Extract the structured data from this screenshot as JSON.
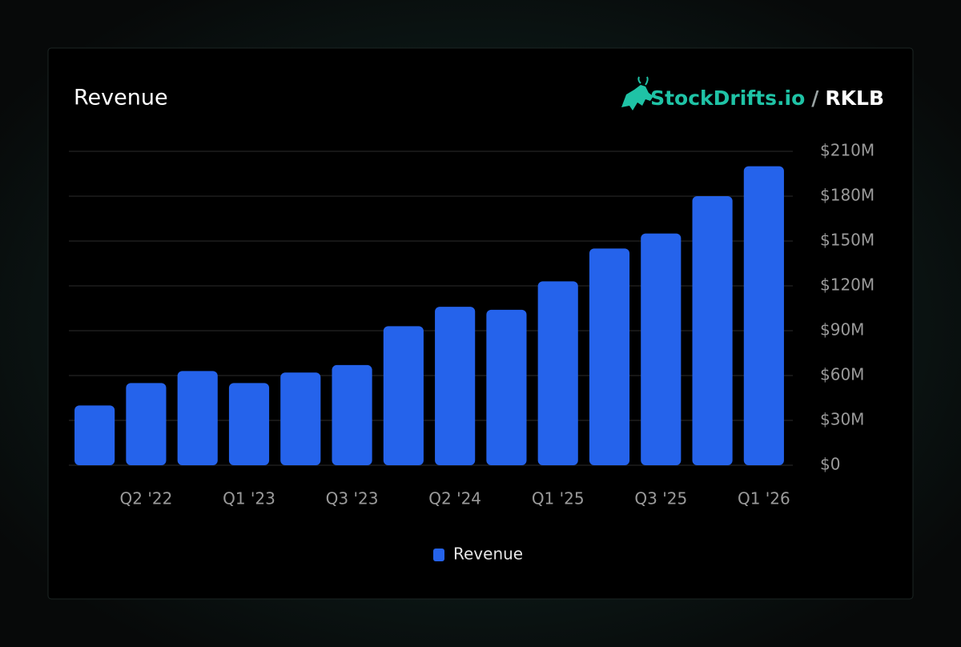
{
  "header": {
    "title": "Revenue",
    "brand": "StockDrifts.io",
    "separator": "/",
    "ticker": "RKLB"
  },
  "chart_data": {
    "type": "bar",
    "categories": [
      null,
      "Q2 '22",
      null,
      "Q1 '23",
      null,
      "Q3 '23",
      null,
      "Q2 '24",
      null,
      "Q1 '25",
      null,
      "Q3 '25",
      null,
      "Q1 '26"
    ],
    "series": [
      {
        "name": "Revenue",
        "color": "#2563eb",
        "values": [
          40,
          55,
          63,
          55,
          62,
          67,
          93,
          106,
          104,
          123,
          145,
          155,
          180,
          200
        ]
      }
    ],
    "ylim": [
      0,
      210
    ],
    "yticks": [
      {
        "value": 0,
        "label": "$0"
      },
      {
        "value": 30,
        "label": "$30M"
      },
      {
        "value": 60,
        "label": "$60M"
      },
      {
        "value": 90,
        "label": "$90M"
      },
      {
        "value": 120,
        "label": "$120M"
      },
      {
        "value": 150,
        "label": "$150M"
      },
      {
        "value": 180,
        "label": "$180M"
      },
      {
        "value": 210,
        "label": "$210M"
      }
    ],
    "grid": true,
    "legend": "bottom"
  }
}
